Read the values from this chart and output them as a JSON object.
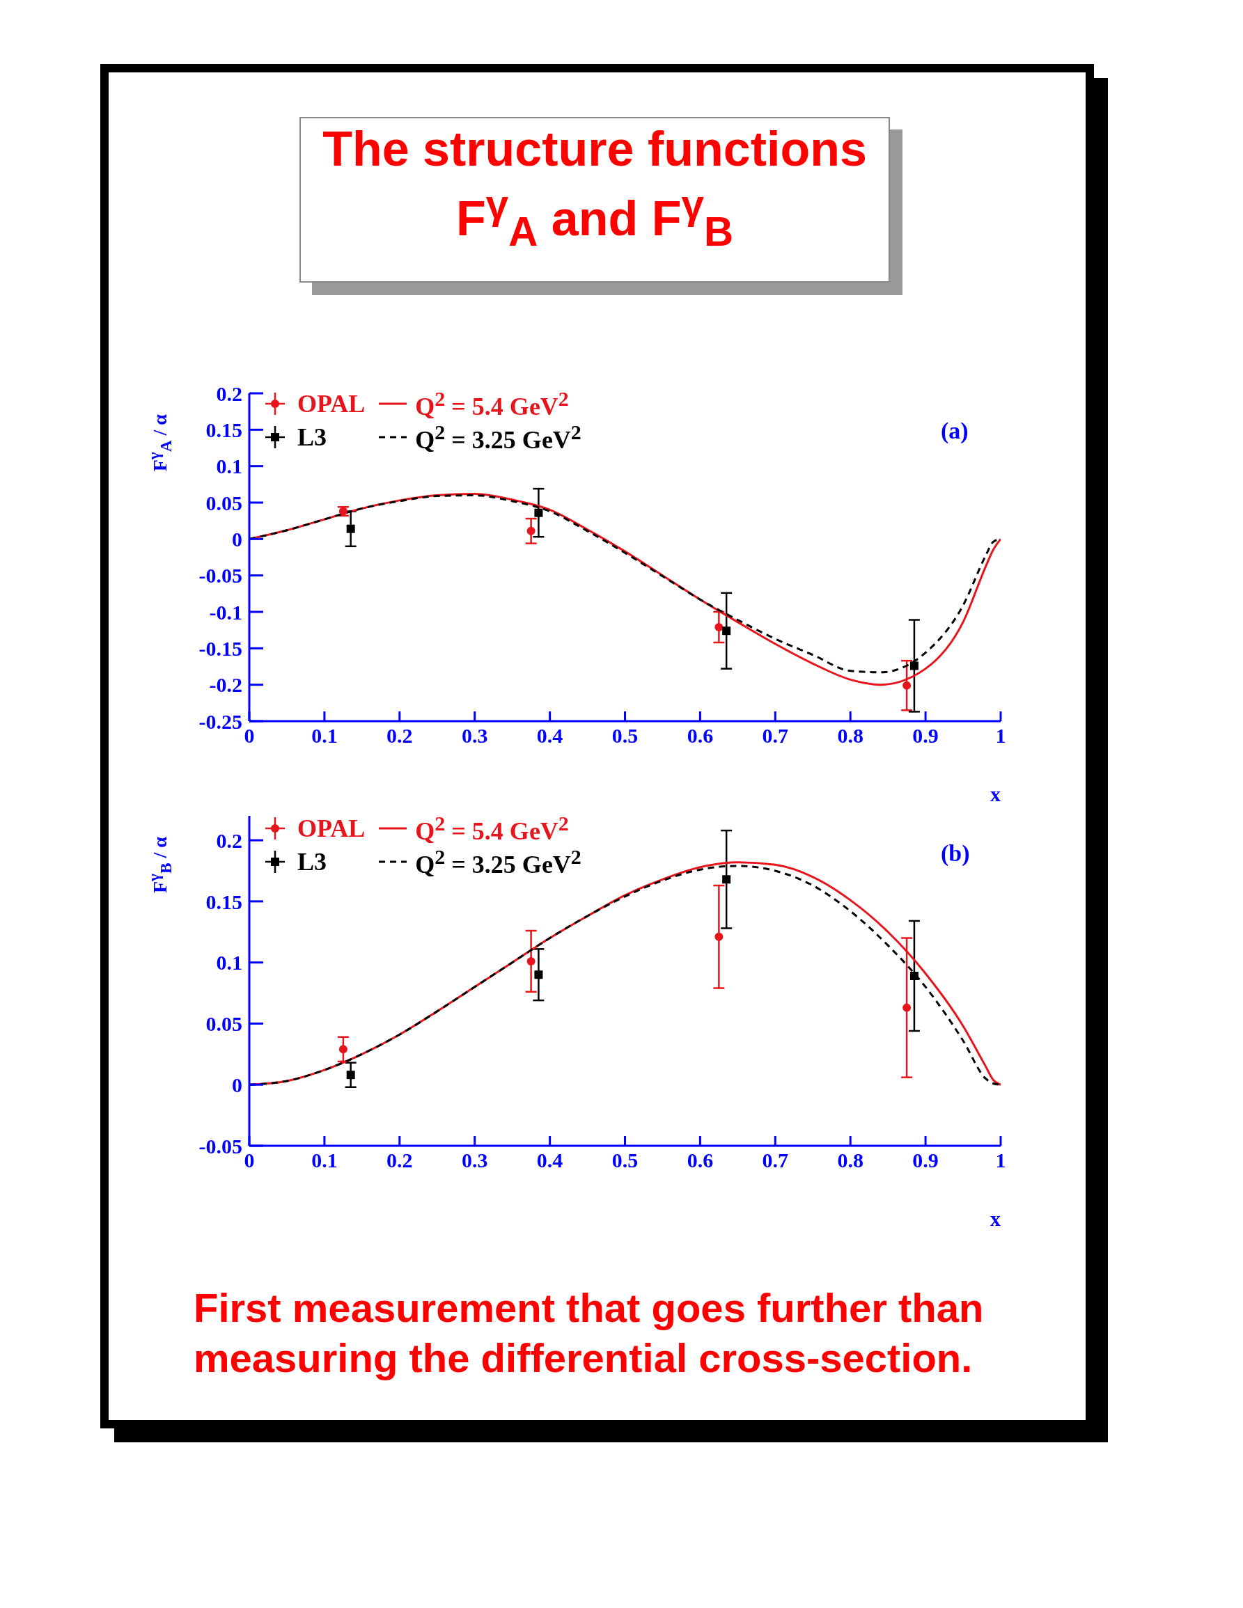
{
  "chart_data": [
    {
      "type": "scatter",
      "title": "The structure functions",
      "subtitle": "F$^{γ}$$_{A}$ and F$^{γ}$$_{B}$",
      "xlabel": "x",
      "ylabel": "F$^{γ}$$_{A}$ / α",
      "annotations": [
        "(a)"
      ],
      "xlim": [
        0,
        1
      ],
      "xticks": [
        0,
        0.1,
        0.2,
        0.3,
        0.4,
        0.5,
        0.6,
        0.7,
        0.8,
        0.9,
        1
      ],
      "ylim": [
        -0.25,
        0.2
      ],
      "yticks": [
        -0.25,
        -0.2,
        -0.15,
        -0.1,
        -0.05,
        0,
        0.05,
        0.1,
        0.15,
        0.2
      ],
      "legend": "top left",
      "series": [
        {
          "name": "OPAL",
          "type": "scatter",
          "marker": "circle",
          "color": "#e8141c",
          "x": [
            0.125,
            0.375,
            0.625,
            0.875
          ],
          "values": [
            0.038,
            0.011,
            -0.121,
            -0.201
          ],
          "errors": [
            0.006,
            0.017,
            0.021,
            0.034
          ]
        },
        {
          "name": "L3",
          "type": "scatter",
          "marker": "square",
          "color": "#000000",
          "x": [
            0.135,
            0.385,
            0.635,
            0.885
          ],
          "values": [
            0.014,
            0.036,
            -0.126,
            -0.174
          ],
          "errors": [
            0.024,
            0.033,
            0.052,
            0.063
          ]
        },
        {
          "name": "Q$^{2}$ = 5.4 GeV$^{2}$",
          "type": "line",
          "line_style": "solid",
          "marker": "none",
          "color": "#e8141c",
          "x": [
            0,
            0.05,
            0.1,
            0.15,
            0.2,
            0.25,
            0.3,
            0.35,
            0.4,
            0.45,
            0.5,
            0.55,
            0.6,
            0.65,
            0.7,
            0.75,
            0.8,
            0.84,
            0.9,
            0.95,
            0.98,
            0.99,
            1
          ],
          "values": [
            0,
            0.012,
            0.027,
            0.042,
            0.053,
            0.06,
            0.062,
            0.054,
            0.04,
            0.013,
            -0.017,
            -0.05,
            -0.083,
            -0.114,
            -0.144,
            -0.171,
            -0.193,
            -0.2,
            -0.178,
            -0.114,
            -0.038,
            -0.015,
            0
          ]
        },
        {
          "name": "Q$^{2}$ = 3.25 GeV$^{2}$",
          "type": "line",
          "line_style": "dashed",
          "marker": "none",
          "color": "#000000",
          "x": [
            0,
            0.05,
            0.1,
            0.15,
            0.2,
            0.25,
            0.3,
            0.35,
            0.4,
            0.45,
            0.5,
            0.55,
            0.6,
            0.65,
            0.7,
            0.75,
            0.8,
            0.84,
            0.9,
            0.95,
            0.98,
            0.99,
            1
          ],
          "values": [
            0,
            0.012,
            0.027,
            0.042,
            0.052,
            0.059,
            0.06,
            0.052,
            0.038,
            0.011,
            -0.019,
            -0.051,
            -0.083,
            -0.111,
            -0.137,
            -0.159,
            -0.181,
            -0.183,
            -0.156,
            -0.091,
            -0.023,
            -0.004,
            0
          ]
        }
      ]
    },
    {
      "type": "scatter",
      "xlabel": "x",
      "ylabel": "F$^{γ}$$_{B}$ / α",
      "annotations": [
        "(b)",
        "First measurement that goes further than measuring the differential cross-section."
      ],
      "xlim": [
        0,
        1
      ],
      "xticks": [
        0,
        0.1,
        0.2,
        0.3,
        0.4,
        0.5,
        0.6,
        0.7,
        0.8,
        0.9,
        1
      ],
      "ylim": [
        -0.05,
        0.22
      ],
      "yticks": [
        -0.05,
        0,
        0.05,
        0.1,
        0.15,
        0.2
      ],
      "legend": "top left",
      "series": [
        {
          "name": "OPAL",
          "type": "scatter",
          "marker": "circle",
          "color": "#e8141c",
          "x": [
            0.125,
            0.375,
            0.625,
            0.875
          ],
          "values": [
            0.029,
            0.101,
            0.121,
            0.063
          ],
          "errors": [
            0.01,
            0.025,
            0.042,
            0.057
          ]
        },
        {
          "name": "L3",
          "type": "scatter",
          "marker": "square",
          "color": "#000000",
          "x": [
            0.135,
            0.385,
            0.635,
            0.885
          ],
          "values": [
            0.008,
            0.09,
            0.168,
            0.089
          ],
          "errors": [
            0.01,
            0.021,
            0.04,
            0.045
          ]
        },
        {
          "name": "Q$^{2}$ = 5.4 GeV$^{2}$",
          "type": "line",
          "line_style": "solid",
          "marker": "none",
          "color": "#e8141c",
          "x": [
            0,
            0.05,
            0.1,
            0.15,
            0.2,
            0.25,
            0.3,
            0.35,
            0.4,
            0.45,
            0.5,
            0.55,
            0.6,
            0.65,
            0.7,
            0.75,
            0.8,
            0.85,
            0.9,
            0.95,
            0.98,
            0.99,
            1
          ],
          "values": [
            0,
            0.003,
            0.012,
            0.025,
            0.041,
            0.06,
            0.08,
            0.1,
            0.12,
            0.138,
            0.155,
            0.168,
            0.178,
            0.182,
            0.18,
            0.17,
            0.151,
            0.125,
            0.091,
            0.048,
            0.015,
            0.004,
            0
          ]
        },
        {
          "name": "Q$^{2}$ = 3.25 GeV$^{2}$",
          "type": "line",
          "line_style": "dashed",
          "marker": "none",
          "color": "#000000",
          "x": [
            0,
            0.05,
            0.1,
            0.15,
            0.2,
            0.25,
            0.3,
            0.35,
            0.4,
            0.45,
            0.5,
            0.55,
            0.6,
            0.65,
            0.7,
            0.75,
            0.8,
            0.85,
            0.9,
            0.95,
            0.98,
            0.99,
            1
          ],
          "values": [
            0,
            0.003,
            0.012,
            0.025,
            0.041,
            0.06,
            0.08,
            0.1,
            0.12,
            0.138,
            0.154,
            0.167,
            0.176,
            0.179,
            0.175,
            0.163,
            0.142,
            0.114,
            0.08,
            0.036,
            0.005,
            0.001,
            0
          ]
        }
      ]
    }
  ]
}
